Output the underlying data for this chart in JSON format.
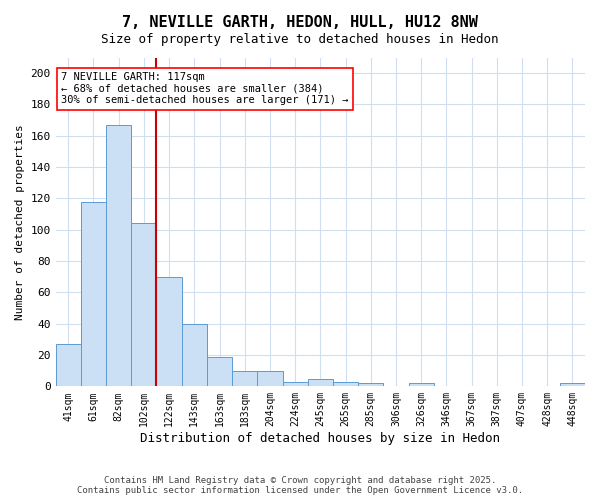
{
  "title1": "7, NEVILLE GARTH, HEDON, HULL, HU12 8NW",
  "title2": "Size of property relative to detached houses in Hedon",
  "xlabel": "Distribution of detached houses by size in Hedon",
  "ylabel": "Number of detached properties",
  "bar_color": "#cce0f5",
  "bar_edge_color": "#5b9bd5",
  "categories": [
    "41sqm",
    "61sqm",
    "82sqm",
    "102sqm",
    "122sqm",
    "143sqm",
    "163sqm",
    "183sqm",
    "204sqm",
    "224sqm",
    "245sqm",
    "265sqm",
    "285sqm",
    "306sqm",
    "326sqm",
    "346sqm",
    "367sqm",
    "387sqm",
    "407sqm",
    "428sqm",
    "448sqm"
  ],
  "values": [
    27,
    118,
    167,
    104,
    70,
    40,
    19,
    10,
    10,
    3,
    5,
    3,
    2,
    0,
    2,
    0,
    0,
    0,
    0,
    0,
    2
  ],
  "ylim": [
    0,
    210
  ],
  "yticks": [
    0,
    20,
    40,
    60,
    80,
    100,
    120,
    140,
    160,
    180,
    200
  ],
  "vline_x": 4.0,
  "vline_color": "#cc0000",
  "annotation_line1": "7 NEVILLE GARTH: 117sqm",
  "annotation_line2": "← 68% of detached houses are smaller (384)",
  "annotation_line3": "30% of semi-detached houses are larger (171) →",
  "footer1": "Contains HM Land Registry data © Crown copyright and database right 2025.",
  "footer2": "Contains public sector information licensed under the Open Government Licence v3.0.",
  "bg_color": "#ffffff",
  "grid_color": "#d0dff0",
  "title1_fontsize": 11,
  "title2_fontsize": 9
}
